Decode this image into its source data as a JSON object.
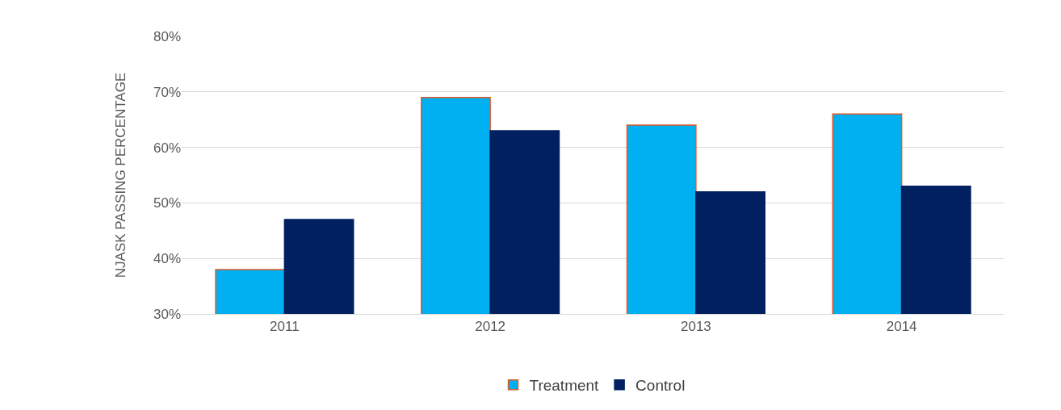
{
  "chart_data": {
    "type": "bar",
    "ylabel": "NJASK PASSING PERCENTAGE",
    "categories": [
      "2011",
      "2012",
      "2013",
      "2014"
    ],
    "series": [
      {
        "name": "Treatment",
        "color": "#00b0f0",
        "values": [
          38,
          69,
          64,
          66
        ]
      },
      {
        "name": "Control",
        "color": "#002060",
        "values": [
          47,
          63,
          52,
          53
        ]
      }
    ],
    "ylim": [
      30,
      80
    ],
    "yticks": [
      {
        "value": 30,
        "label": "30%"
      },
      {
        "value": 40,
        "label": "40%"
      },
      {
        "value": 50,
        "label": "50%"
      },
      {
        "value": 60,
        "label": "60%"
      },
      {
        "value": 70,
        "label": "70%"
      },
      {
        "value": 80,
        "label": "80%"
      }
    ],
    "grid": "y",
    "legend": "bottom"
  }
}
